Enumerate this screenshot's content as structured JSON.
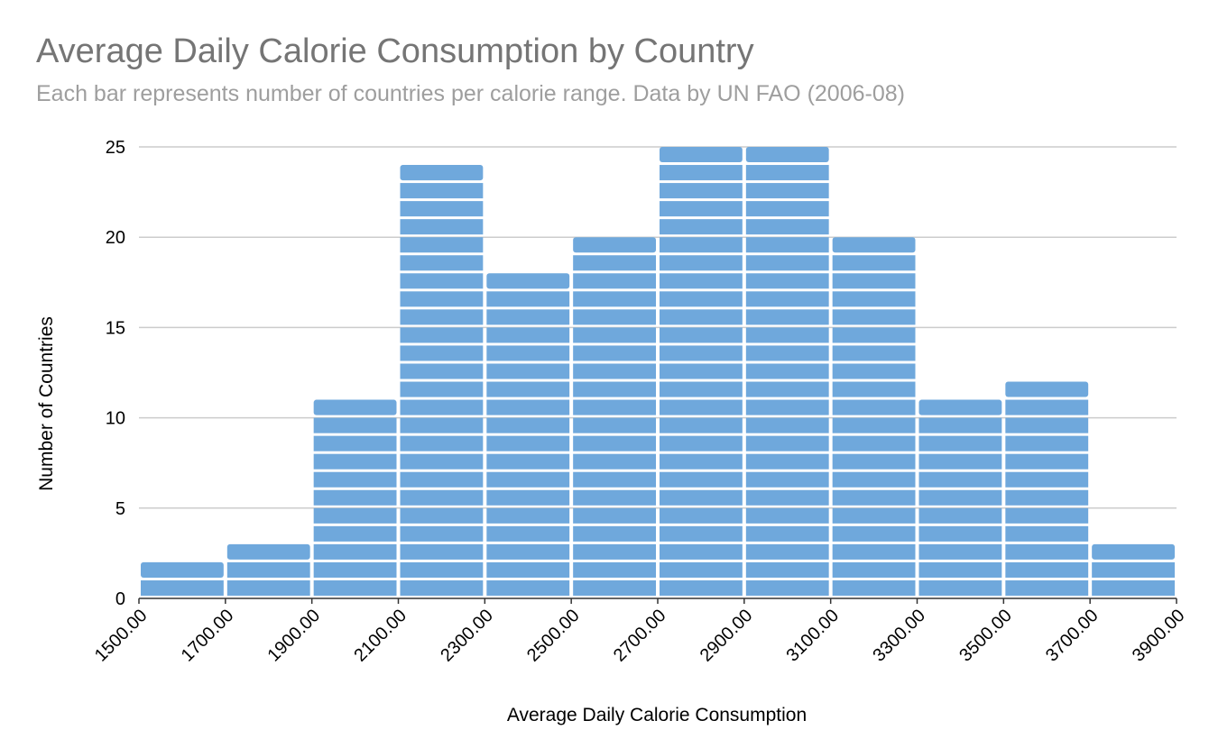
{
  "chart_data": {
    "type": "bar",
    "title": "Average Daily Calorie Consumption by Country",
    "subtitle": "Each bar represents number of countries per calorie range. Data by UN FAO (2006-08)",
    "xlabel": "Average Daily Calorie Consumption",
    "ylabel": "Number of Countries",
    "bin_edges": [
      1500,
      1700,
      1900,
      2100,
      2300,
      2500,
      2700,
      2900,
      3100,
      3300,
      3500,
      3700,
      3900
    ],
    "x_tick_labels": [
      "1500.00",
      "1700.00",
      "1900.00",
      "2100.00",
      "2300.00",
      "2500.00",
      "2700.00",
      "2900.00",
      "3100.00",
      "3300.00",
      "3500.00",
      "3700.00",
      "3900.00"
    ],
    "values": [
      2,
      3,
      11,
      24,
      18,
      20,
      25,
      25,
      20,
      11,
      12,
      3
    ],
    "ylim": [
      0,
      25
    ],
    "y_ticks": [
      0,
      5,
      10,
      15,
      20,
      25
    ],
    "grid": true,
    "bar_color": "#6fa8dc",
    "stacked_unit_segments": true
  }
}
